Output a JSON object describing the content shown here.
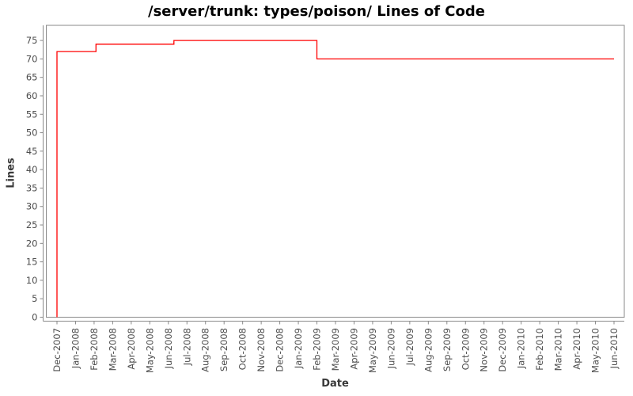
{
  "chart_data": {
    "type": "line",
    "subtype": "step",
    "title": "/server/trunk: types/poison/ Lines of Code",
    "xlabel": "Date",
    "ylabel": "Lines",
    "grid": false,
    "legend": false,
    "background": "#ffffff",
    "line_color": "#ff0000",
    "axis_color": "#8a8a8a",
    "tick_label_color": "#4d4d4d",
    "x_tick_labels": [
      "Dec-2007",
      "Jan-2008",
      "Feb-2008",
      "Mar-2008",
      "Apr-2008",
      "May-2008",
      "Jun-2008",
      "Jul-2008",
      "Aug-2008",
      "Sep-2008",
      "Oct-2008",
      "Nov-2008",
      "Dec-2008",
      "Jan-2009",
      "Feb-2009",
      "Mar-2009",
      "Apr-2009",
      "May-2009",
      "Jun-2009",
      "Jul-2009",
      "Aug-2009",
      "Sep-2009",
      "Oct-2009",
      "Nov-2009",
      "Dec-2009",
      "Jan-2010",
      "Feb-2010",
      "Mar-2010",
      "Apr-2010",
      "May-2010",
      "Jun-2010"
    ],
    "y_ticks": [
      0,
      5,
      10,
      15,
      20,
      25,
      30,
      35,
      40,
      45,
      50,
      55,
      60,
      65,
      70,
      75
    ],
    "ylim": [
      0,
      79.1
    ],
    "xlim_index": [
      -0.575,
      30.554
    ],
    "series": [
      {
        "points": [
          {
            "x": 0,
            "date": "Dec-2007",
            "y": 0
          },
          {
            "x": 0,
            "date": "Dec-2007",
            "y": 72
          },
          {
            "x": 2.1,
            "date": "Feb-2008",
            "y": 72
          },
          {
            "x": 2.1,
            "date": "Feb-2008",
            "y": 74
          },
          {
            "x": 6.3,
            "date": "Jun-2008",
            "y": 74
          },
          {
            "x": 6.3,
            "date": "Jun-2008",
            "y": 75
          },
          {
            "x": 14,
            "date": "Feb-2009",
            "y": 75
          },
          {
            "x": 14,
            "date": "Feb-2009",
            "y": 70
          },
          {
            "x": 30,
            "date": "Jun-2010",
            "y": 70
          }
        ]
      }
    ]
  }
}
